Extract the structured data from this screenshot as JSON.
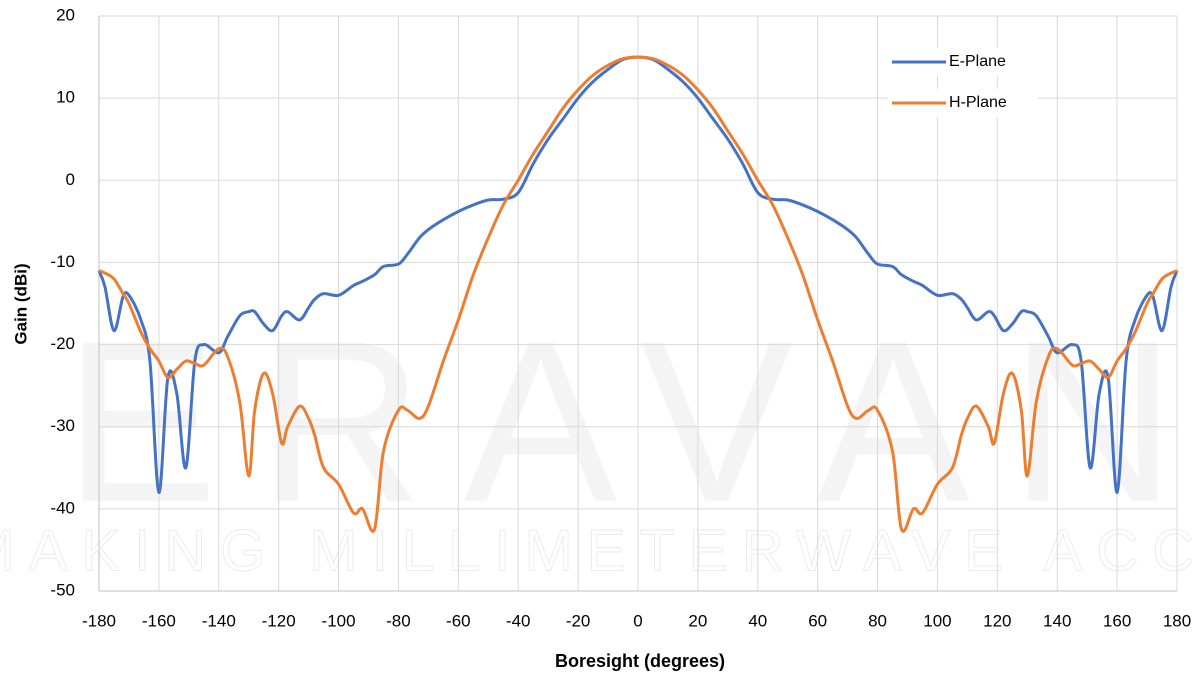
{
  "chart_data": {
    "type": "line",
    "x_label": "Boresight (degrees)",
    "y_label": "Gain (dBi)",
    "watermark": "ERAVAN",
    "watermark_tagline": "MAKING MILLIMETERWAVE ACCES",
    "x": [
      -180,
      -178,
      -175,
      -172,
      -170,
      -166,
      -163,
      -160,
      -157,
      -154,
      -151,
      -148,
      -145,
      -140,
      -137,
      -133,
      -130,
      -128,
      -125,
      -122,
      -119,
      -117,
      -113,
      -110,
      -108,
      -105,
      -100,
      -95,
      -92,
      -88,
      -85,
      -80,
      -77,
      -73,
      -70,
      -65,
      -60,
      -55,
      -50,
      -45,
      -40,
      -35,
      -30,
      -25,
      -20,
      -15,
      -10,
      -5,
      0,
      5,
      10,
      15,
      20,
      25,
      30,
      35,
      40,
      45,
      50,
      55,
      60,
      65,
      70,
      73,
      77,
      80,
      85,
      88,
      92,
      95,
      100,
      105,
      108,
      110,
      113,
      117,
      119,
      122,
      125,
      128,
      130,
      133,
      137,
      140,
      145,
      148,
      151,
      154,
      157,
      160,
      163,
      166,
      170,
      172,
      175,
      178,
      180
    ],
    "series": [
      {
        "name": "E-Plane",
        "color": "#4472c4",
        "values": [
          -11,
          -13,
          -18.3,
          -14.2,
          -14,
          -17,
          -22,
          -38,
          -24,
          -26,
          -35,
          -22,
          -20,
          -21,
          -19,
          -16.5,
          -16,
          -16,
          -17.5,
          -18.3,
          -16.5,
          -16,
          -17,
          -15.5,
          -14.5,
          -13.8,
          -14,
          -12.8,
          -12.3,
          -11.5,
          -10.5,
          -10.2,
          -9,
          -7,
          -6,
          -4.8,
          -3.8,
          -3,
          -2.4,
          -2.3,
          -1.5,
          2,
          5,
          7.5,
          10,
          12,
          13.5,
          14.7,
          15,
          14.7,
          13.5,
          12,
          10,
          7.5,
          5,
          2,
          -1.5,
          -2.3,
          -2.4,
          -3,
          -3.8,
          -4.8,
          -6,
          -7,
          -9,
          -10.2,
          -10.5,
          -11.5,
          -12.3,
          -12.8,
          -14,
          -13.8,
          -14.5,
          -15.5,
          -17,
          -16,
          -16.5,
          -18.3,
          -17.5,
          -16,
          -16,
          -16.5,
          -19,
          -21,
          -20,
          -22,
          -35,
          -26,
          -24,
          -38,
          -22,
          -17,
          -14,
          -14.2,
          -18.3,
          -13,
          -11
        ]
      },
      {
        "name": "H-Plane",
        "color": "#ed7d31",
        "values": [
          -11,
          -11.3,
          -12,
          -13.8,
          -15,
          -18.5,
          -20.5,
          -22,
          -24,
          -23,
          -22,
          -22.3,
          -22.5,
          -20.5,
          -21.5,
          -27,
          -36,
          -28,
          -23.5,
          -26,
          -32,
          -30,
          -27.5,
          -29,
          -31,
          -35,
          -37,
          -40.5,
          -40,
          -42.5,
          -33,
          -28,
          -28,
          -29,
          -27.5,
          -22,
          -17,
          -11.5,
          -7,
          -3,
          0,
          3.2,
          6,
          8.8,
          11,
          12.8,
          14,
          14.8,
          15,
          14.8,
          14,
          12.8,
          11,
          8.8,
          6,
          3.2,
          0,
          -3,
          -7,
          -11.5,
          -17,
          -22,
          -27.5,
          -29,
          -28,
          -28,
          -33,
          -42.5,
          -40,
          -40.5,
          -37,
          -35,
          -31,
          -29,
          -27.5,
          -30,
          -32,
          -26,
          -23.5,
          -28,
          -36,
          -27,
          -21.5,
          -20.5,
          -22.5,
          -22.3,
          -22,
          -23,
          -24,
          -22,
          -20.5,
          -18.5,
          -15,
          -13.8,
          -12,
          -11.3,
          -11
        ]
      }
    ],
    "xlim": [
      -180,
      180
    ],
    "xticks": [
      -180,
      -160,
      -140,
      -120,
      -100,
      -80,
      -60,
      -40,
      -20,
      0,
      20,
      40,
      60,
      80,
      100,
      120,
      140,
      160,
      180
    ],
    "ylim": [
      -50,
      20
    ],
    "yticks": [
      -50,
      -40,
      -30,
      -20,
      -10,
      0,
      10,
      20
    ],
    "grid": true,
    "legend": "upper right"
  }
}
